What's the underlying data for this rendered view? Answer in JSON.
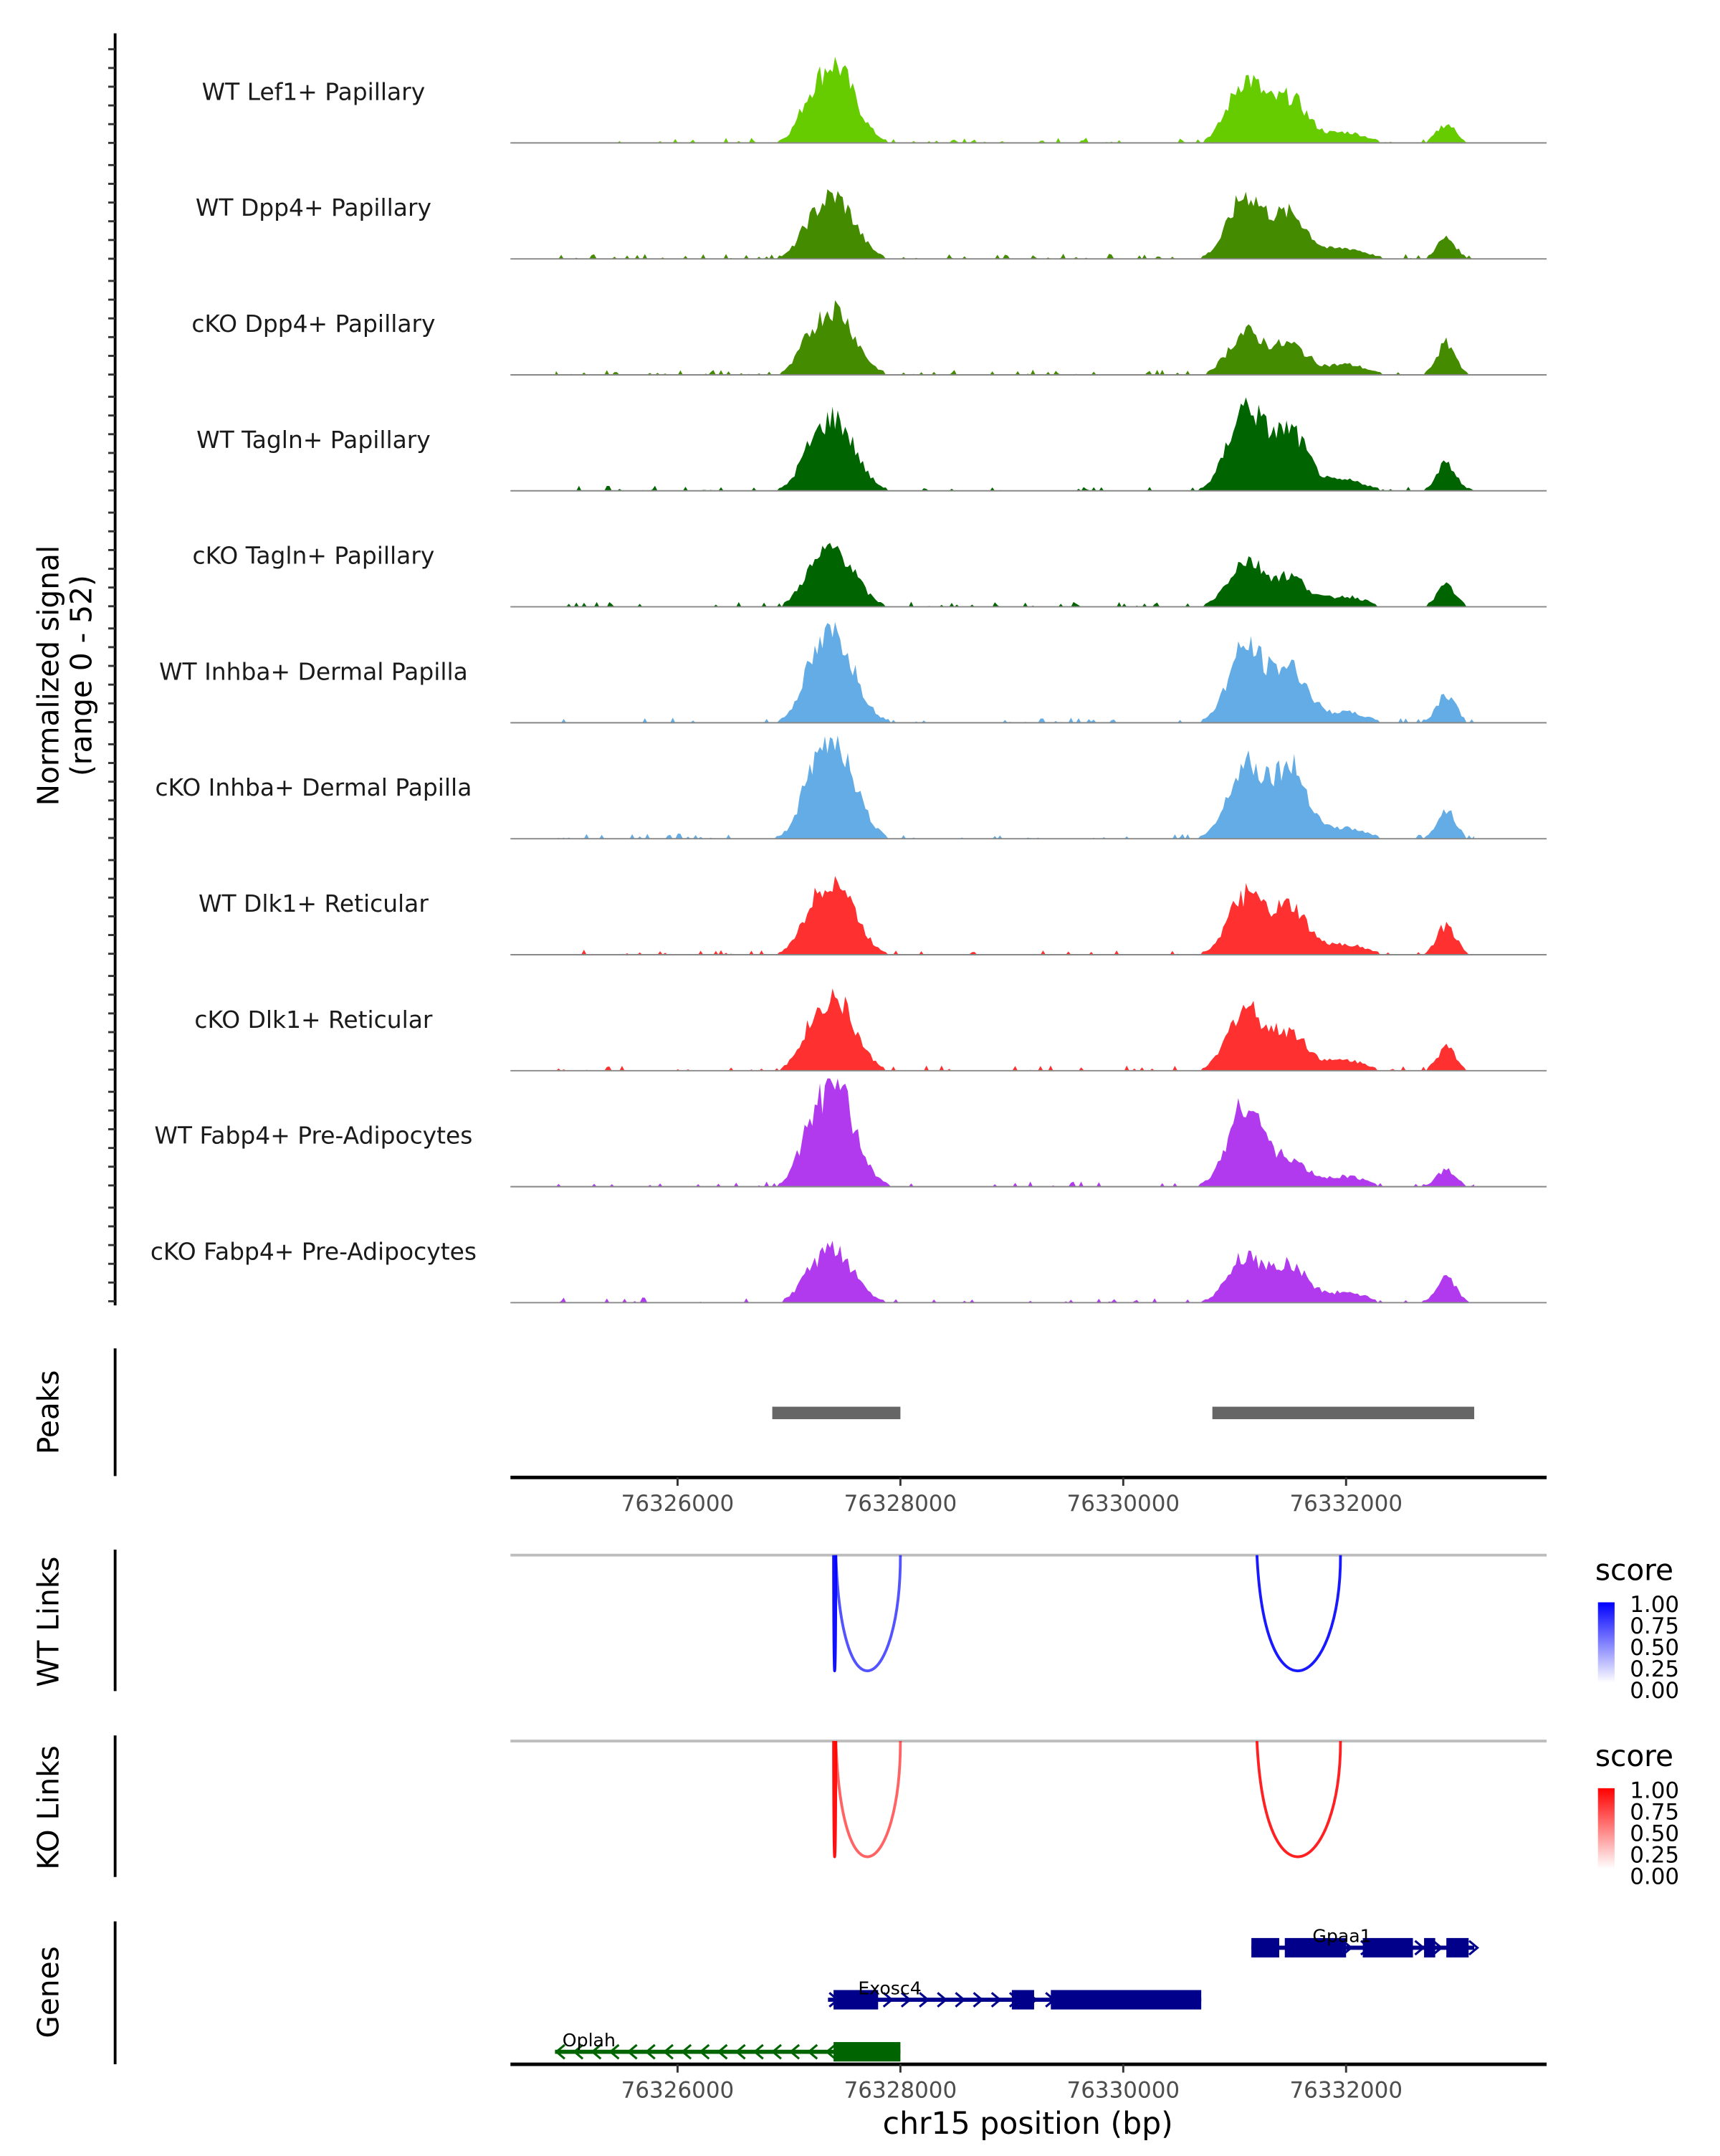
{
  "chart_data": {
    "type": "area",
    "title": "",
    "xlabel": "chr15 position (bp)",
    "ylabel": "Normalized signal\n(range 0 - 52)",
    "ylabel_line1": "Normalized signal",
    "ylabel_line2": "(range 0 - 52)",
    "xlim": [
      76324500,
      76333800
    ],
    "x_ticks": [
      76326000,
      76328000,
      76330000,
      76332000
    ],
    "x_tick_labels": [
      "76326000",
      "76328000",
      "76330000",
      "76332000"
    ],
    "ylim": [
      0,
      52
    ],
    "tracks": [
      {
        "name": "WT Lef1+ Papillary",
        "color": "#66CC00",
        "peaks": [
          [
            76327400,
            38
          ],
          [
            76331100,
            30
          ],
          [
            76331500,
            21
          ],
          [
            76332900,
            9
          ]
        ]
      },
      {
        "name": "WT Dpp4+ Papillary",
        "color": "#458B00",
        "peaks": [
          [
            76327400,
            30
          ],
          [
            76331100,
            30
          ],
          [
            76331500,
            21
          ],
          [
            76332900,
            10
          ]
        ]
      },
      {
        "name": "cKO Dpp4+ Papillary",
        "color": "#458B00",
        "peaks": [
          [
            76327400,
            32
          ],
          [
            76331100,
            20
          ],
          [
            76331500,
            14
          ],
          [
            76332900,
            15
          ]
        ]
      },
      {
        "name": "WT Tagln+ Papillary",
        "color": "#006400",
        "peaks": [
          [
            76327400,
            35
          ],
          [
            76331100,
            40
          ],
          [
            76331500,
            28
          ],
          [
            76332900,
            13
          ]
        ]
      },
      {
        "name": "cKO Tagln+ Papillary",
        "color": "#006400",
        "peaks": [
          [
            76327400,
            28
          ],
          [
            76331100,
            22
          ],
          [
            76331500,
            14
          ],
          [
            76332900,
            10
          ]
        ]
      },
      {
        "name": "WT Inhba+ Dermal Papilla",
        "color": "#63ACE5",
        "peaks": [
          [
            76327400,
            43
          ],
          [
            76331100,
            36
          ],
          [
            76331500,
            26
          ],
          [
            76332900,
            14
          ]
        ]
      },
      {
        "name": "cKO Inhba+ Dermal Papilla",
        "color": "#63ACE5",
        "peaks": [
          [
            76327400,
            48
          ],
          [
            76331100,
            36
          ],
          [
            76331500,
            34
          ],
          [
            76332900,
            14
          ]
        ]
      },
      {
        "name": "WT Dlk1+ Reticular",
        "color": "#FF3030",
        "peaks": [
          [
            76327400,
            36
          ],
          [
            76331100,
            28
          ],
          [
            76331500,
            22
          ],
          [
            76332900,
            14
          ]
        ]
      },
      {
        "name": "cKO Dlk1+ Reticular",
        "color": "#FF3030",
        "peaks": [
          [
            76327400,
            35
          ],
          [
            76331100,
            30
          ],
          [
            76331500,
            18
          ],
          [
            76332900,
            11
          ]
        ]
      },
      {
        "name": "WT Fabp4+ Pre-Adipocytes",
        "color": "#B23AEE",
        "peaks": [
          [
            76327400,
            49
          ],
          [
            76331100,
            40
          ],
          [
            76331500,
            12
          ],
          [
            76332900,
            8
          ]
        ]
      },
      {
        "name": "cKO Fabp4+ Pre-Adipocytes",
        "color": "#B23AEE",
        "peaks": [
          [
            76327400,
            25
          ],
          [
            76331100,
            22
          ],
          [
            76331500,
            18
          ],
          [
            76332900,
            12
          ]
        ]
      }
    ],
    "peaks_track": {
      "label": "Peaks",
      "color": "#666666",
      "regions": [
        [
          76326850,
          76328000
        ],
        [
          76330800,
          76333150
        ]
      ]
    },
    "links": [
      {
        "label": "WT Links",
        "legend_title": "score",
        "legend_ticks": [
          "1.00",
          "0.75",
          "0.50",
          "0.25",
          "0.00"
        ],
        "color_high": "#0000FF",
        "links": [
          [
            76327400,
            76327420,
            0.9
          ],
          [
            76327420,
            76328000,
            0.5
          ],
          [
            76331200,
            76331950,
            0.85
          ]
        ]
      },
      {
        "label": "KO Links",
        "legend_title": "score",
        "legend_ticks": [
          "1.00",
          "0.75",
          "0.50",
          "0.25",
          "0.00"
        ],
        "color_high": "#FF0000",
        "links": [
          [
            76327400,
            76327420,
            0.9
          ],
          [
            76327420,
            76328000,
            0.4
          ],
          [
            76331200,
            76331950,
            0.8
          ]
        ]
      }
    ],
    "genes_track": {
      "label": "Genes",
      "genes": [
        {
          "name": "Gpaa1",
          "strand": "+",
          "start": 76331150,
          "end": 76333150,
          "row": 0,
          "color": "#00008B",
          "exons": [
            [
              76331150,
              76331400
            ],
            [
              76331450,
              76332000
            ],
            [
              76332150,
              76332600
            ],
            [
              76332700,
              76332800
            ],
            [
              76332900,
              76333100
            ]
          ]
        },
        {
          "name": "Exosc4",
          "strand": "+",
          "start": 76327350,
          "end": 76330700,
          "row": 1,
          "color": "#00008B",
          "exons": [
            [
              76327400,
              76327800
            ],
            [
              76329000,
              76329200
            ],
            [
              76329350,
              76330700
            ]
          ]
        },
        {
          "name": "Oplah",
          "strand": "-",
          "start": 76324900,
          "end": 76328000,
          "row": 2,
          "color": "#006400",
          "exons": [
            [
              76327400,
              76328000
            ]
          ]
        }
      ]
    }
  }
}
